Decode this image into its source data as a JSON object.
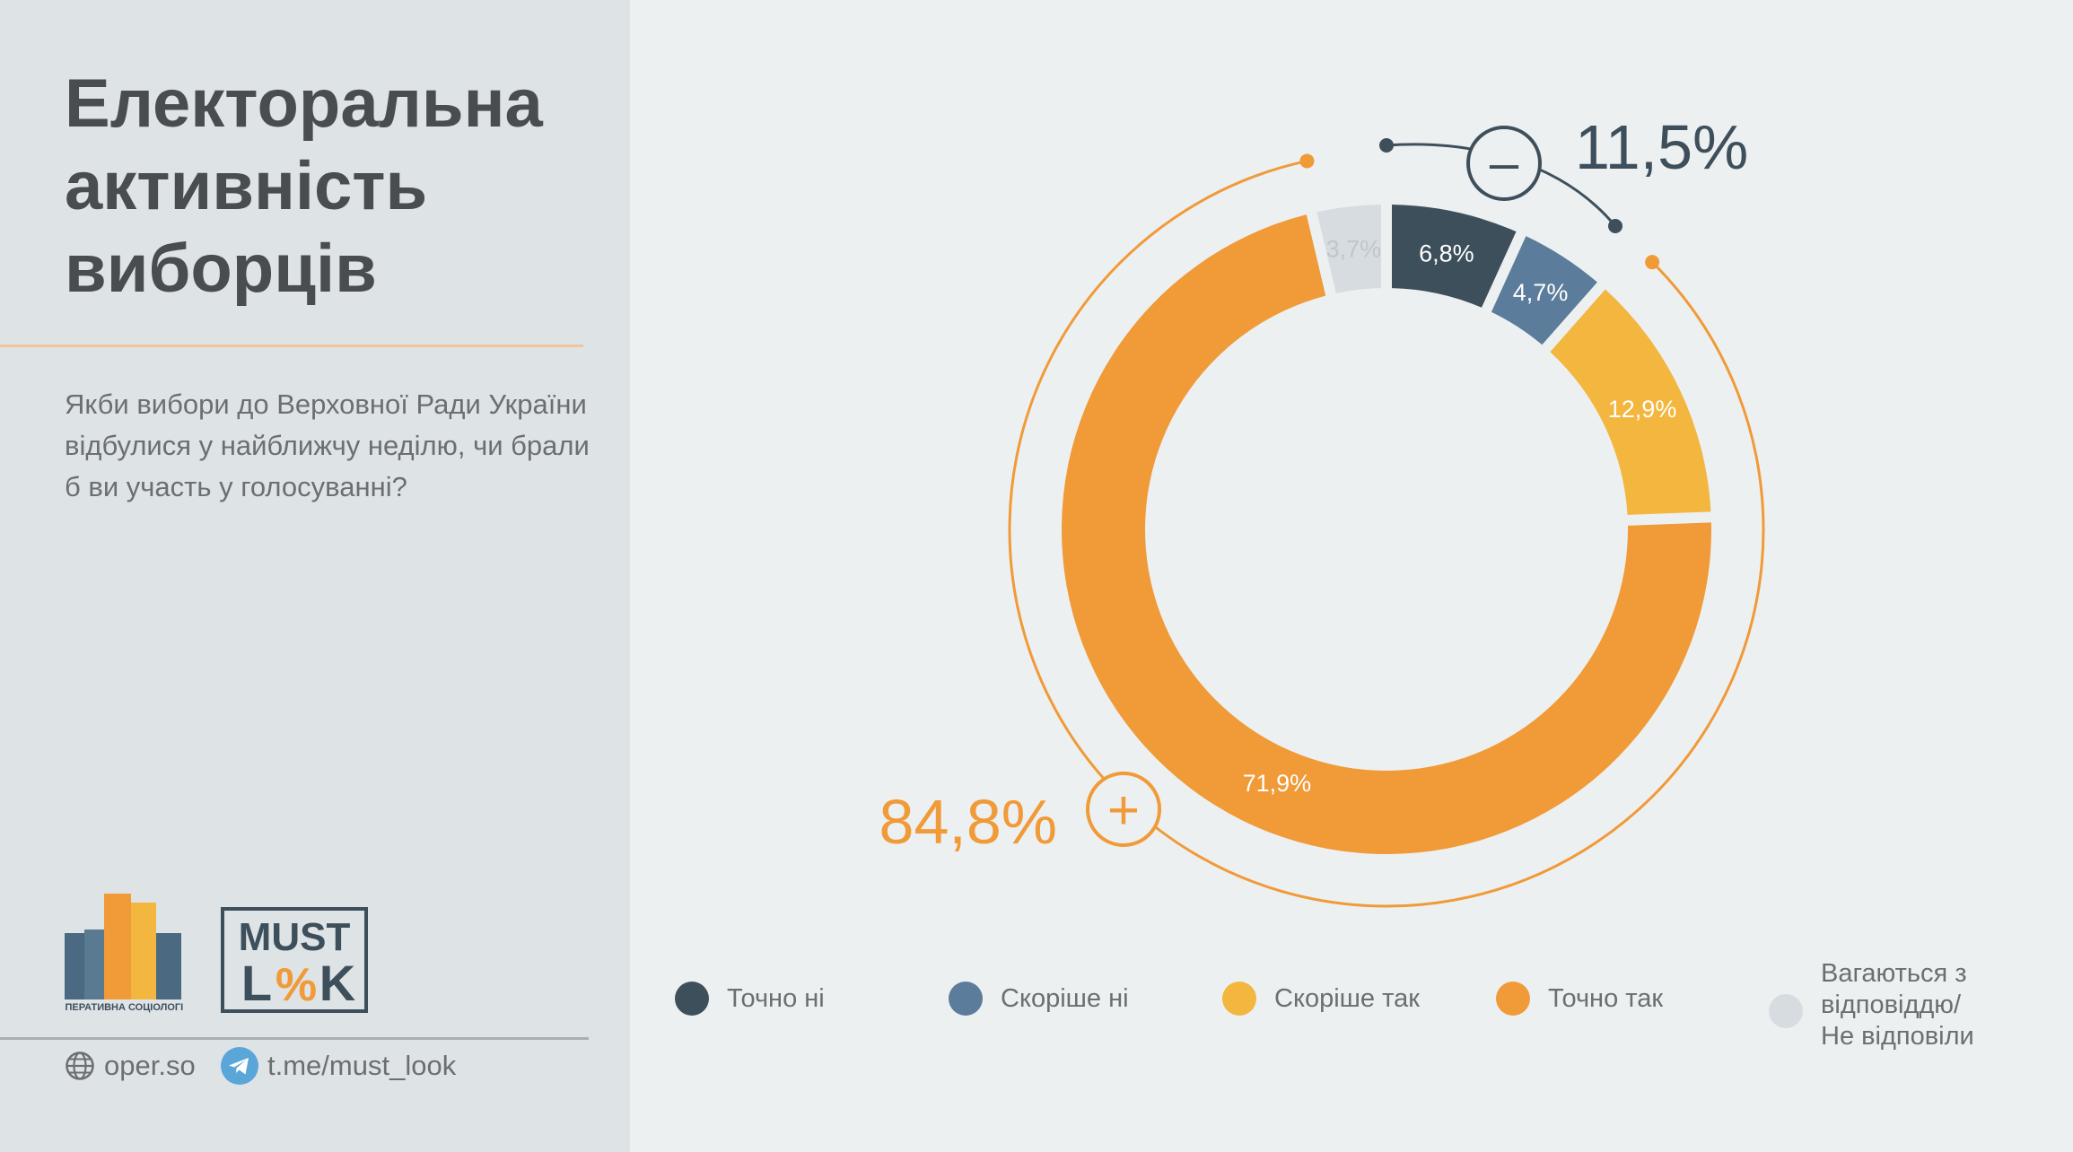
{
  "sidebar": {
    "title_lines": [
      "Електоральна",
      "активність",
      "виборців"
    ],
    "question": "Якби вибори до Верховної Ради України відбулися у найближчу неділю, чи брали б ви участь у голосуванні?",
    "logos": {
      "oper_caption": "ОПЕРАТИВНА СОЦІОЛОГІЯ",
      "must_line1": "MUST",
      "must_line2a": "L",
      "must_line2b": "%",
      "must_line2c": "K"
    },
    "footer": {
      "site": "oper.so",
      "telegram": "t.me/must_look"
    }
  },
  "chart_data": {
    "type": "pie",
    "series": [
      {
        "name": "Точно ні",
        "value": 6.8,
        "label": "6,8%",
        "color": "#3e4f5c"
      },
      {
        "name": "Скоріше ні",
        "value": 4.7,
        "label": "4,7%",
        "color": "#5b7c9b"
      },
      {
        "name": "Скоріше так",
        "value": 12.9,
        "label": "12,9%",
        "color": "#f3b63f"
      },
      {
        "name": "Точно так",
        "value": 71.9,
        "label": "71,9%",
        "color": "#f09a38"
      },
      {
        "name": "Вагаються з відповіддю/ Не відповіли",
        "value": 3.7,
        "label": "3,7%",
        "color": "#d6dcdf"
      }
    ],
    "annotations": {
      "negative_total": "11,5%",
      "negative_sign": "–",
      "positive_total": "84,8%",
      "positive_sign": "+"
    },
    "legend": {
      "placement": "bottom",
      "items": [
        {
          "label": "Точно ні",
          "color": "#3e4f5c"
        },
        {
          "label": "Скоріше ні",
          "color": "#5b7c9b"
        },
        {
          "label": "Скоріше так",
          "color": "#f3b63f"
        },
        {
          "label": "Точно так",
          "color": "#f09a38"
        },
        {
          "lines": [
            "Вагаються з",
            "відповіддю/",
            "Не відповіли"
          ],
          "color": "#d6dcdf"
        }
      ]
    }
  },
  "colors": {
    "accent": "#f09a38",
    "dark": "#3e4f5c",
    "text": "#6b6f72",
    "title": "#4a4d4f"
  }
}
